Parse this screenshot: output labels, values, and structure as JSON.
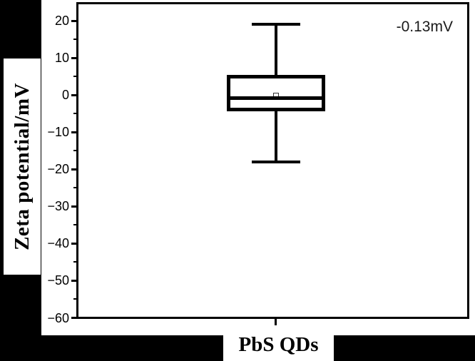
{
  "figure": {
    "background_color": "#000000",
    "plot_background_color": "#ffffff",
    "line_color": "#000000",
    "y_axis": {
      "label": "Zeta potential/mV",
      "ticks": [
        {
          "value": 20,
          "label": "20"
        },
        {
          "value": 10,
          "label": "10"
        },
        {
          "value": 0,
          "label": "0"
        },
        {
          "value": -10,
          "label": "−10"
        },
        {
          "value": -20,
          "label": "−20"
        },
        {
          "value": -30,
          "label": "−30"
        },
        {
          "value": -40,
          "label": "−40"
        },
        {
          "value": -50,
          "label": "−50"
        },
        {
          "value": -60,
          "label": "−60"
        }
      ],
      "minor_tick_values": [
        15,
        5,
        -5,
        -15,
        -25,
        -35,
        -45,
        -55
      ]
    },
    "x_axis": {
      "label": "PbS QDs"
    },
    "annotation": {
      "text": "-0.13mV"
    }
  },
  "chart_data": {
    "type": "box",
    "title": "",
    "xlabel": "PbS QDs",
    "ylabel": "Zeta potential/mV",
    "ylim": [
      -60,
      25
    ],
    "yticks": [
      20,
      10,
      0,
      -10,
      -20,
      -30,
      -40,
      -50,
      -60
    ],
    "grid": false,
    "legend": null,
    "categories": [
      "PbS QDs"
    ],
    "series": [
      {
        "name": "PbS QDs",
        "whisker_low": -18,
        "q1": -4.1,
        "median": -0.8,
        "q3": 5.4,
        "whisker_high": 19,
        "mean": -0.13
      }
    ],
    "annotations": [
      {
        "text": "-0.13mV",
        "refers_to": "mean",
        "position": "top-right"
      }
    ]
  }
}
